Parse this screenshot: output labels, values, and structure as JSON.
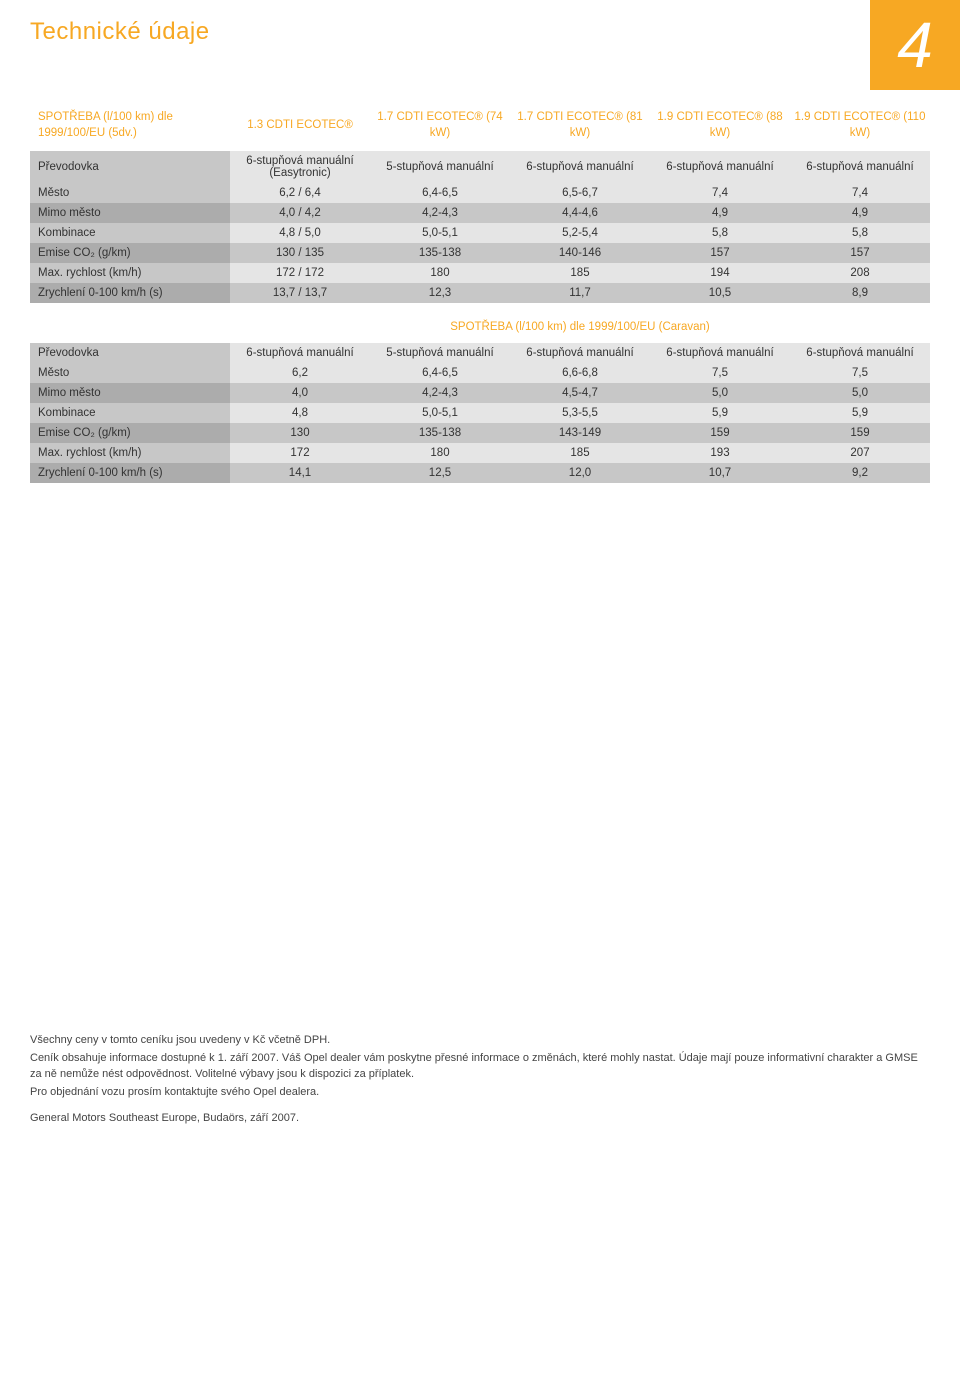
{
  "header": {
    "title": "Technické údaje",
    "page_number": "4"
  },
  "table1": {
    "heading_label": "SPOTŘEBA (l/100 km) dle 1999/100/EU (5dv.)",
    "cols": [
      "1.3 CDTI ECOTEC®",
      "1.7 CDTI ECOTEC® (74 kW)",
      "1.7 CDTI ECOTEC® (81 kW)",
      "1.9 CDTI ECOTEC® (88 kW)",
      "1.9 CDTI ECOTEC® (110 kW)"
    ],
    "gear_row_label": "Převodovka",
    "gears": [
      "6-stupňová manuální (Easytronic)",
      "5-stupňová manuální",
      "6-stupňová manuální",
      "6-stupňová manuální",
      "6-stupňová manuální"
    ],
    "rows": [
      {
        "label": "Město",
        "vals": [
          "6,2 / 6,4",
          "6,4-6,5",
          "6,5-6,7",
          "7,4",
          "7,4"
        ],
        "band": "light"
      },
      {
        "label": "Mimo město",
        "vals": [
          "4,0 / 4,2",
          "4,2-4,3",
          "4,4-4,6",
          "4,9",
          "4,9"
        ],
        "band": "dark"
      },
      {
        "label": "Kombinace",
        "vals": [
          "4,8 / 5,0",
          "5,0-5,1",
          "5,2-5,4",
          "5,8",
          "5,8"
        ],
        "band": "light"
      },
      {
        "label": "Emise CO₂ (g/km)",
        "vals": [
          "130 / 135",
          "135-138",
          "140-146",
          "157",
          "157"
        ],
        "band": "dark"
      },
      {
        "label": "Max. rychlost (km/h)",
        "vals": [
          "172 / 172",
          "180",
          "185",
          "194",
          "208"
        ],
        "band": "light"
      },
      {
        "label": "Zrychlení 0-100 km/h (s)",
        "vals": [
          "13,7 / 13,7",
          "12,3",
          "11,7",
          "10,5",
          "8,9"
        ],
        "band": "dark"
      }
    ]
  },
  "table2": {
    "banner": "SPOTŘEBA (l/100 km) dle 1999/100/EU (Caravan)",
    "gear_row_label": "Převodovka",
    "gears": [
      "6-stupňová manuální",
      "5-stupňová manuální",
      "6-stupňová manuální",
      "6-stupňová manuální",
      "6-stupňová manuální"
    ],
    "rows": [
      {
        "label": "Město",
        "vals": [
          "6,2",
          "6,4-6,5",
          "6,6-6,8",
          "7,5",
          "7,5"
        ],
        "band": "light"
      },
      {
        "label": "Mimo město",
        "vals": [
          "4,0",
          "4,2-4,3",
          "4,5-4,7",
          "5,0",
          "5,0"
        ],
        "band": "dark"
      },
      {
        "label": "Kombinace",
        "vals": [
          "4,8",
          "5,0-5,1",
          "5,3-5,5",
          "5,9",
          "5,9"
        ],
        "band": "light"
      },
      {
        "label": "Emise CO₂ (g/km)",
        "vals": [
          "130",
          "135-138",
          "143-149",
          "159",
          "159"
        ],
        "band": "dark"
      },
      {
        "label": "Max. rychlost (km/h)",
        "vals": [
          "172",
          "180",
          "185",
          "193",
          "207"
        ],
        "band": "light"
      },
      {
        "label": "Zrychlení 0-100 km/h (s)",
        "vals": [
          "14,1",
          "12,5",
          "12,0",
          "10,7",
          "9,2"
        ],
        "band": "dark"
      }
    ]
  },
  "footer": {
    "p1": "Všechny ceny v tomto ceníku jsou uvedeny v Kč včetně DPH.",
    "p2": "Ceník obsahuje informace dostupné k 1. září 2007. Váš Opel dealer vám poskytne přesné informace o změnách, které mohly nastat. Údaje mají pouze informativní charakter a GMSE za ně nemůže nést odpovědnost. Volitelné výbavy jsou k dispozici za příplatek.",
    "p3": "Pro objednání vozu prosím kontaktujte svého Opel dealera.",
    "p4": "General Motors Southeast Europe, Budaörs, září 2007."
  },
  "colors": {
    "accent": "#f7a823",
    "band_light": "#e5e5e5",
    "band_dark": "#c7c7c7",
    "label_light": "#c7c7c7",
    "label_dark": "#acacac"
  }
}
